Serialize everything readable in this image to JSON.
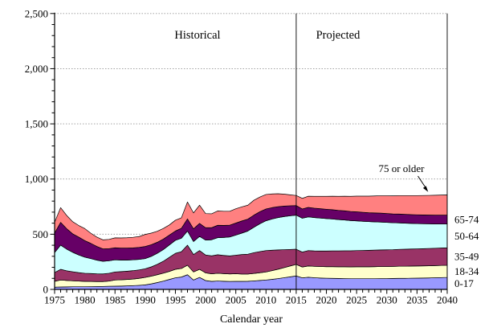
{
  "annotations": {
    "historical": "Historical",
    "projected": "Projected",
    "arrow_label": "75 or older"
  },
  "chart_data": {
    "type": "area",
    "stacked": true,
    "title": "",
    "xlabel": "Calendar year",
    "ylabel": "",
    "x_start": 1975,
    "x_end": 2040,
    "divider_year": 2015,
    "ylim": [
      0,
      2500
    ],
    "grid": "horizontal-dotted",
    "legend_position": "right-of-plot",
    "y_axis": {
      "tick_values": [
        0,
        500,
        1000,
        1500,
        2000,
        2500
      ],
      "tick_labels": [
        "0",
        "500",
        "1,000",
        "1,500",
        "2,000",
        "2,500"
      ],
      "minor_step": 100
    },
    "x_axis": {
      "label_step": 5,
      "minor_step": 1,
      "label_years": [
        1975,
        1980,
        1985,
        1990,
        1995,
        2000,
        2005,
        2010,
        2015,
        2020,
        2025,
        2030,
        2035,
        2040
      ]
    },
    "series": [
      {
        "name": "0-17",
        "color": "#9999FF",
        "values": [
          20,
          22,
          23,
          24,
          24,
          24,
          25,
          26,
          27,
          28,
          29,
          30,
          32,
          34,
          37,
          41,
          50,
          62,
          75,
          90,
          105,
          112,
          133,
          85,
          109,
          80,
          73,
          76,
          74,
          72,
          73,
          73,
          74,
          77,
          81,
          85,
          91,
          98,
          106,
          114,
          122,
          105,
          110,
          106,
          103,
          101,
          100,
          99,
          98,
          97,
          97,
          97,
          97,
          97,
          98,
          98,
          99,
          100,
          100,
          101,
          102,
          103,
          104,
          106,
          107,
          109
        ]
      },
      {
        "name": "18-34",
        "color": "#FFFFCC",
        "values": [
          53,
          63,
          58,
          54,
          51,
          49,
          47,
          45,
          44,
          47,
          56,
          57,
          58,
          60,
          63,
          68,
          70,
          71,
          72,
          73,
          77,
          78,
          86,
          73,
          73,
          70,
          68,
          70,
          69,
          68,
          69,
          66,
          65,
          68,
          70,
          73,
          79,
          85,
          91,
          98,
          104,
          98,
          102,
          103,
          104,
          105,
          106,
          106,
          107,
          107,
          108,
          108,
          108,
          109,
          109,
          109,
          109,
          110,
          110,
          110,
          110,
          110,
          110,
          110,
          110,
          110
        ]
      },
      {
        "name": "35-49",
        "color": "#993366",
        "values": [
          80,
          97,
          88,
          82,
          77,
          73,
          72,
          70,
          69,
          71,
          73,
          74,
          75,
          76,
          77,
          78,
          84,
          94,
          108,
          128,
          145,
          152,
          182,
          158,
          170,
          162,
          163,
          168,
          165,
          163,
          168,
          177,
          180,
          188,
          192,
          194,
          185,
          175,
          163,
          150,
          138,
          135,
          140,
          140,
          141,
          142,
          143,
          144,
          145,
          146,
          147,
          148,
          149,
          150,
          151,
          152,
          152,
          153,
          154,
          155,
          155,
          156,
          157,
          157,
          158,
          158
        ]
      },
      {
        "name": "50-64",
        "color": "#CCFFFF",
        "values": [
          180,
          219,
          196,
          176,
          160,
          146,
          135,
          124,
          115,
          113,
          110,
          105,
          101,
          98,
          95,
          92,
          95,
          100,
          106,
          112,
          118,
          122,
          128,
          118,
          128,
          135,
          146,
          155,
          163,
          172,
          182,
          194,
          210,
          230,
          252,
          270,
          283,
          293,
          300,
          305,
          309,
          307,
          305,
          302,
          298,
          294,
          289,
          284,
          279,
          274,
          269,
          264,
          260,
          256,
          252,
          248,
          244,
          240,
          236,
          232,
          229,
          226,
          223,
          220,
          218,
          216
        ]
      },
      {
        "name": "65-74",
        "color": "#660066",
        "values": [
          177,
          206,
          185,
          167,
          162,
          150,
          138,
          124,
          112,
          110,
          109,
          108,
          108,
          108,
          109,
          110,
          106,
          100,
          95,
          89,
          84,
          90,
          110,
          115,
          118,
          112,
          109,
          112,
          109,
          107,
          109,
          110,
          108,
          110,
          109,
          107,
          103,
          99,
          95,
          91,
          87,
          84,
          86,
          85,
          85,
          84,
          84,
          83,
          83,
          82,
          82,
          82,
          81,
          81,
          81,
          81,
          80,
          80,
          80,
          80,
          80,
          80,
          80,
          80,
          80,
          80
        ]
      },
      {
        "name": "75 or older",
        "color": "#FF8080",
        "values": [
          97,
          134,
          120,
          110,
          105,
          109,
          92,
          85,
          82,
          84,
          90,
          92,
          94,
          96,
          98,
          109,
          105,
          100,
          96,
          92,
          98,
          95,
          153,
          144,
          165,
          128,
          126,
          130,
          128,
          126,
          130,
          128,
          126,
          135,
          133,
          131,
          124,
          117,
          108,
          99,
          91,
          96,
          101,
          107,
          112,
          117,
          122,
          127,
          132,
          137,
          142,
          146,
          150,
          154,
          158,
          161,
          164,
          167,
          170,
          172,
          174,
          176,
          178,
          180,
          182,
          183
        ]
      }
    ],
    "style": {
      "area_stroke": "#000000",
      "gridline_color": "#969696",
      "axis_color": "#000000",
      "background": "#FFFFFF"
    }
  }
}
